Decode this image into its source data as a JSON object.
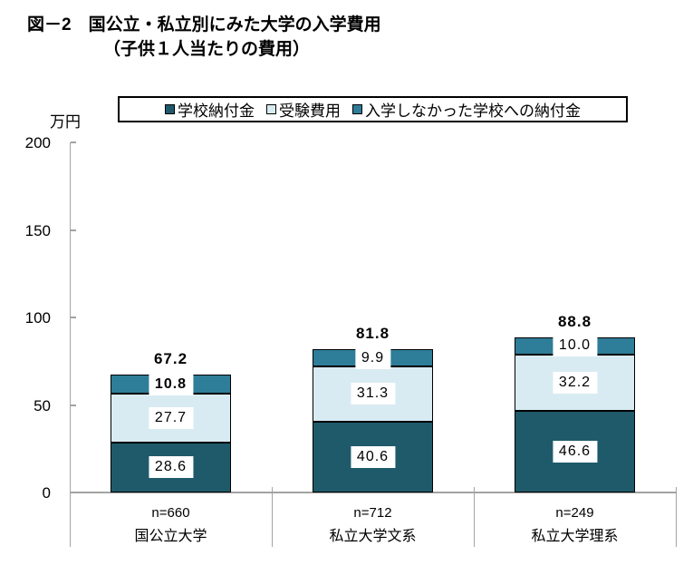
{
  "figure": {
    "title_line1": "図－2　国公立・私立別にみた大学の入学費用",
    "title_line2": "（子供１人当たりの費用）",
    "unit_label": "万円"
  },
  "legend": {
    "items": [
      {
        "label": "学校納付金",
        "color": "#1f5a6b"
      },
      {
        "label": "受験費用",
        "color": "#d9ebf2"
      },
      {
        "label": "入学しなかった学校への納付金",
        "color": "#2e7d99"
      }
    ]
  },
  "chart_data": {
    "type": "bar",
    "stacked": true,
    "title": "図－2 国公立・私立別にみた大学の入学費用（子供１人当たりの費用）",
    "categories": [
      "国公立大学",
      "私立大学文系",
      "私立大学理系"
    ],
    "sample_labels": [
      "n=660",
      "n=712",
      "n=249"
    ],
    "series": [
      {
        "name": "学校納付金",
        "color": "#1f5a6b",
        "values": [
          28.6,
          40.6,
          46.6
        ]
      },
      {
        "name": "受験費用",
        "color": "#d9ebf2",
        "values": [
          27.7,
          31.3,
          32.2
        ]
      },
      {
        "name": "入学しなかった学校への納付金",
        "color": "#2e7d99",
        "values": [
          10.8,
          9.9,
          10.0
        ]
      }
    ],
    "totals": [
      67.2,
      81.8,
      88.8
    ],
    "ylabel": "万円",
    "ylim": [
      0,
      200
    ],
    "yticks": [
      0,
      50,
      100,
      150,
      200
    ],
    "legend_position": "top",
    "grid": false
  },
  "style": {
    "axis_color": "#a3a3a3",
    "bar_border_color": "#000000",
    "label_box_background": "#ffffff",
    "bold_segment_labels": [
      [
        0,
        2
      ]
    ]
  }
}
